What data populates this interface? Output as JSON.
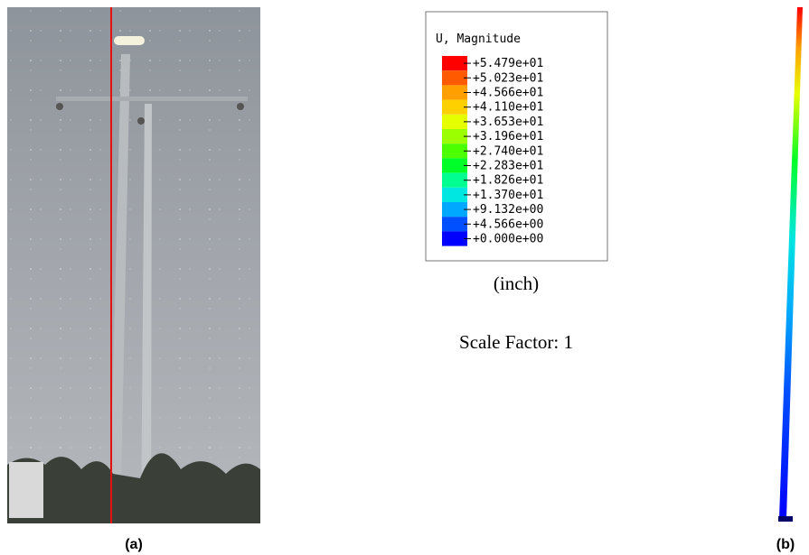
{
  "legend": {
    "title": "U, Magnitude",
    "labels": [
      "+5.479e+01",
      "+5.023e+01",
      "+4.566e+01",
      "+4.110e+01",
      "+3.653e+01",
      "+3.196e+01",
      "+2.740e+01",
      "+2.283e+01",
      "+1.826e+01",
      "+1.370e+01",
      "+9.132e+00",
      "+4.566e+00",
      "+0.000e+00"
    ],
    "colors": [
      "#ff0000",
      "#ff5a00",
      "#ffa000",
      "#ffd000",
      "#e6ff00",
      "#9cff00",
      "#4cff00",
      "#00ff28",
      "#00ff90",
      "#00e6e0",
      "#00a8ff",
      "#0050ff",
      "#0000ff"
    ],
    "unit": "(inch)"
  },
  "scale_factor": "Scale Factor: 1",
  "captions": [
    "(a)",
    "(b)"
  ]
}
